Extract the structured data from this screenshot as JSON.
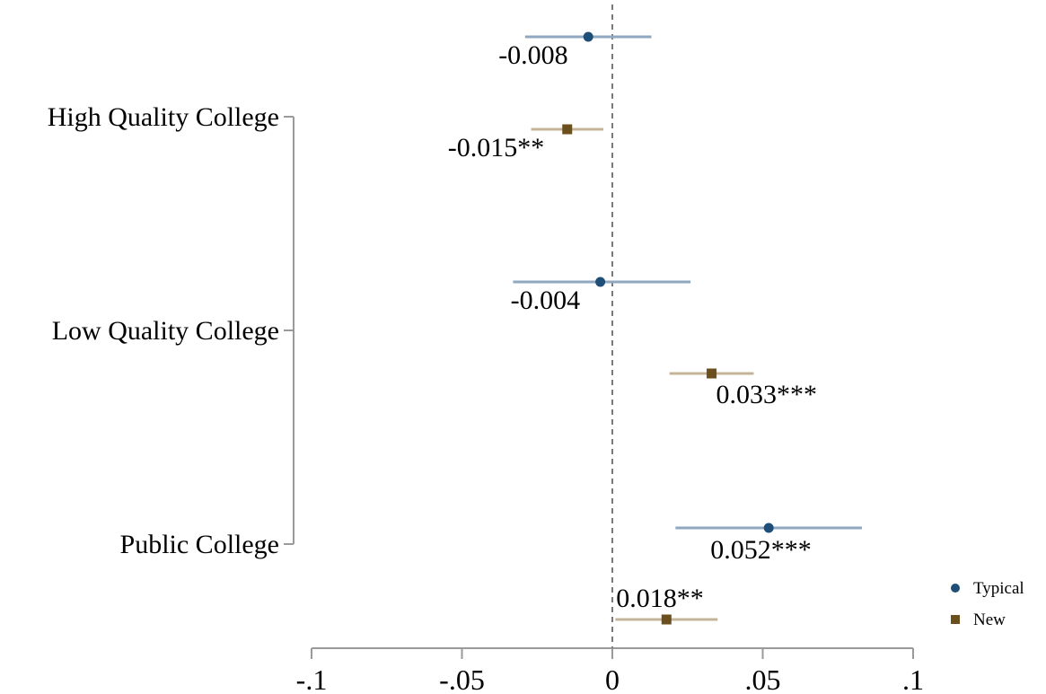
{
  "chart_data": {
    "type": "scatter",
    "title": "",
    "xlabel": "",
    "ylabel": "",
    "xlim": [
      -0.1,
      0.1
    ],
    "x_ticks": [
      "-.1",
      "-.05",
      "0",
      ".05",
      ".1"
    ],
    "x_tick_values": [
      -0.1,
      -0.05,
      0,
      0.05,
      0.1
    ],
    "reference_line": 0,
    "categories": [
      "High Quality College",
      "Low Quality College",
      "Public College"
    ],
    "series": [
      {
        "name": "Typical",
        "marker": "circle",
        "color": "#1f4e79",
        "ci_color": "#8fa8bf",
        "points": [
          {
            "category": "High Quality College",
            "estimate": -0.008,
            "ci_low": -0.029,
            "ci_high": 0.013,
            "label": "-0.008"
          },
          {
            "category": "Low Quality College",
            "estimate": -0.004,
            "ci_low": -0.033,
            "ci_high": 0.026,
            "label": "-0.004"
          },
          {
            "category": "Public College",
            "estimate": 0.052,
            "ci_low": 0.021,
            "ci_high": 0.083,
            "label": "0.052***"
          }
        ]
      },
      {
        "name": "New",
        "marker": "square",
        "color": "#6b4f1d",
        "ci_color": "#c4b49a",
        "points": [
          {
            "category": "High Quality College",
            "estimate": -0.015,
            "ci_low": -0.027,
            "ci_high": -0.003,
            "label": "-0.015**"
          },
          {
            "category": "Low Quality College",
            "estimate": 0.033,
            "ci_low": 0.019,
            "ci_high": 0.047,
            "label": "0.033***"
          },
          {
            "category": "Public College",
            "estimate": 0.018,
            "ci_low": 0.001,
            "ci_high": 0.035,
            "label": "0.018**"
          }
        ]
      }
    ],
    "legend": {
      "position": "bottom-right",
      "entries": [
        "Typical",
        "New"
      ]
    },
    "grid": false
  }
}
